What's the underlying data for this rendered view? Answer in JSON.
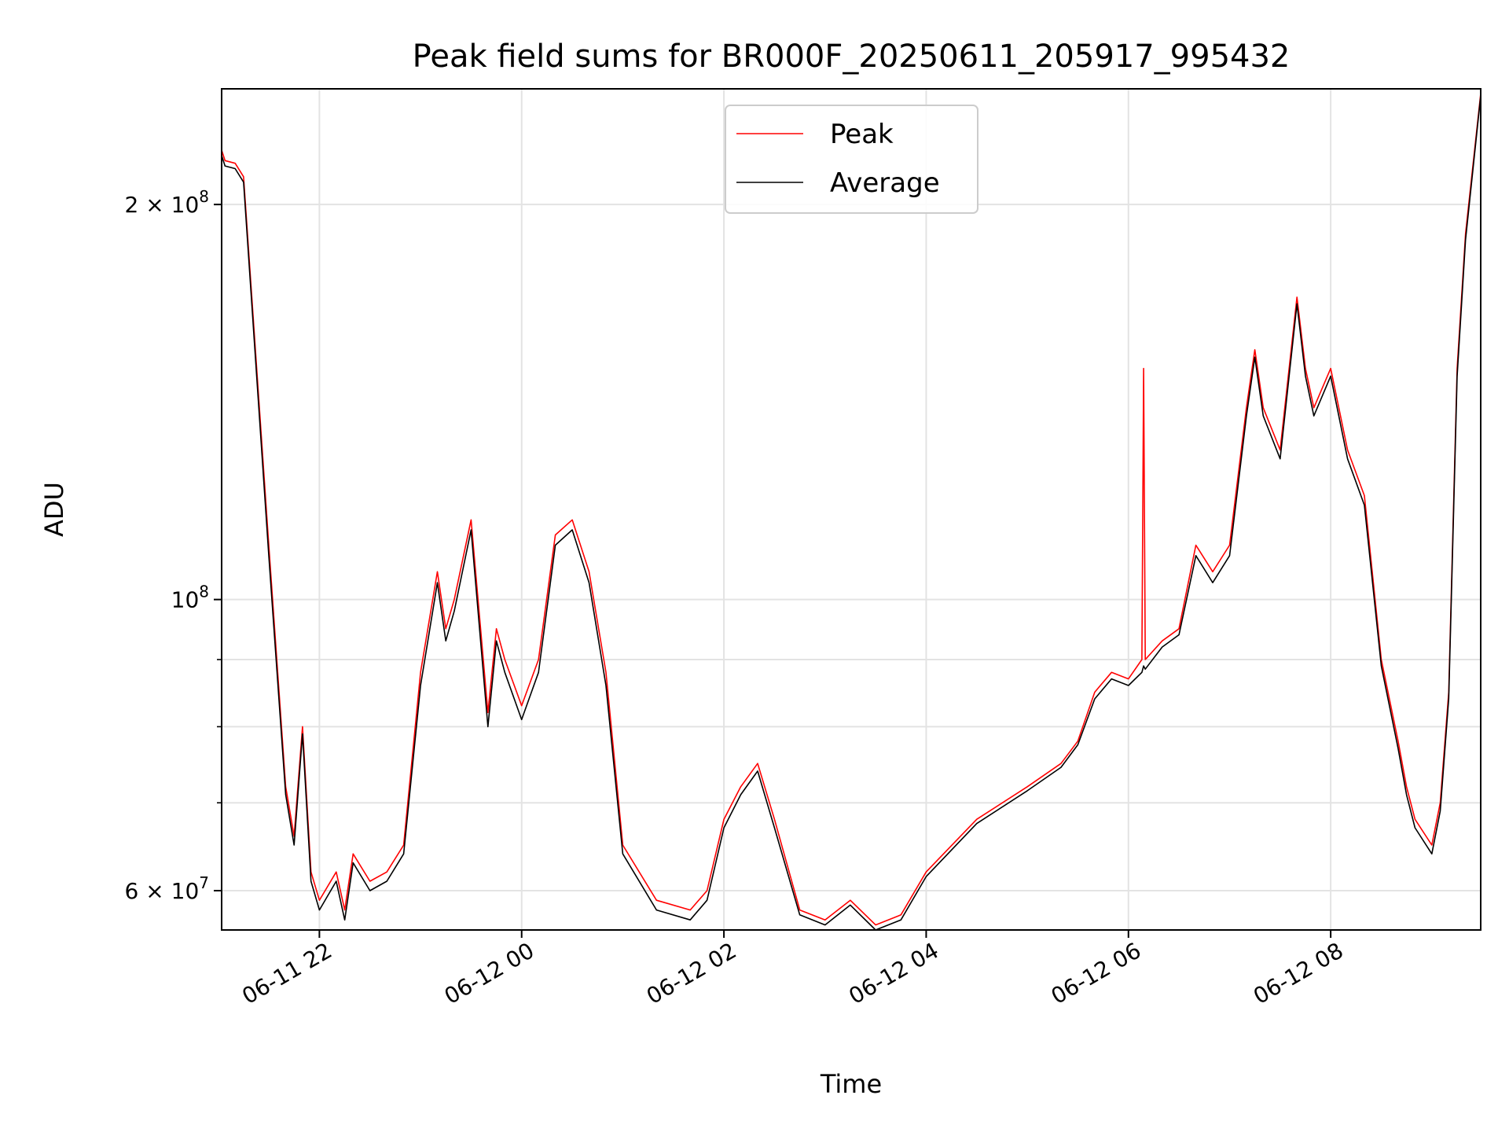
{
  "chart_data": {
    "type": "line",
    "title": "Peak field sums for BR000F_20250611_205917_995432",
    "xlabel": "Time",
    "ylabel": "ADU",
    "yscale": "log",
    "xlim": [
      "2025-06-11 21:02",
      "2025-06-12 09:29"
    ],
    "ylim": [
      56000000,
      245000000
    ],
    "grid": true,
    "legend": "upper center",
    "x_ticks": [
      {
        "value": "2025-06-11 22:00",
        "label": "06-11 22"
      },
      {
        "value": "2025-06-12 00:00",
        "label": "06-12 00"
      },
      {
        "value": "2025-06-12 02:00",
        "label": "06-12 02"
      },
      {
        "value": "2025-06-12 04:00",
        "label": "06-12 04"
      },
      {
        "value": "2025-06-12 06:00",
        "label": "06-12 06"
      },
      {
        "value": "2025-06-12 08:00",
        "label": "06-12 08"
      }
    ],
    "y_ticks": [
      {
        "value": 60000000,
        "label": "6 × 10^7",
        "mantissa": "6 × 10",
        "exp": "7"
      },
      {
        "value": 100000000,
        "label": "10^8",
        "mantissa": "10",
        "exp": "8"
      },
      {
        "value": 200000000,
        "label": "2 × 10^8",
        "mantissa": "2 × 10",
        "exp": "8"
      }
    ],
    "y_minor_ticks": [
      70000000,
      80000000,
      90000000
    ],
    "series": [
      {
        "name": "Peak",
        "color": "#ff0000",
        "x": [
          "2025-06-11 21:02",
          "2025-06-11 21:04",
          "2025-06-11 21:10",
          "2025-06-11 21:15",
          "2025-06-11 21:30",
          "2025-06-11 21:40",
          "2025-06-11 21:45",
          "2025-06-11 21:50",
          "2025-06-11 21:55",
          "2025-06-11 22:00",
          "2025-06-11 22:10",
          "2025-06-11 22:15",
          "2025-06-11 22:20",
          "2025-06-11 22:30",
          "2025-06-11 22:40",
          "2025-06-11 22:50",
          "2025-06-11 23:00",
          "2025-06-11 23:10",
          "2025-06-11 23:15",
          "2025-06-11 23:20",
          "2025-06-11 23:30",
          "2025-06-11 23:40",
          "2025-06-11 23:45",
          "2025-06-11 23:50",
          "2025-06-12 00:00",
          "2025-06-12 00:10",
          "2025-06-12 00:20",
          "2025-06-12 00:30",
          "2025-06-12 00:40",
          "2025-06-12 00:50",
          "2025-06-12 01:00",
          "2025-06-12 01:20",
          "2025-06-12 01:40",
          "2025-06-12 01:50",
          "2025-06-12 02:00",
          "2025-06-12 02:10",
          "2025-06-12 02:20",
          "2025-06-12 02:30",
          "2025-06-12 02:45",
          "2025-06-12 03:00",
          "2025-06-12 03:15",
          "2025-06-12 03:30",
          "2025-06-12 03:45",
          "2025-06-12 04:00",
          "2025-06-12 04:30",
          "2025-06-12 05:00",
          "2025-06-12 05:20",
          "2025-06-12 05:30",
          "2025-06-12 05:40",
          "2025-06-12 05:50",
          "2025-06-12 06:00",
          "2025-06-12 06:08",
          "2025-06-12 06:09",
          "2025-06-12 06:10",
          "2025-06-12 06:20",
          "2025-06-12 06:30",
          "2025-06-12 06:40",
          "2025-06-12 06:50",
          "2025-06-12 07:00",
          "2025-06-12 07:10",
          "2025-06-12 07:15",
          "2025-06-12 07:20",
          "2025-06-12 07:30",
          "2025-06-12 07:40",
          "2025-06-12 07:45",
          "2025-06-12 07:50",
          "2025-06-12 08:00",
          "2025-06-12 08:10",
          "2025-06-12 08:20",
          "2025-06-12 08:30",
          "2025-06-12 08:40",
          "2025-06-12 08:45",
          "2025-06-12 08:50",
          "2025-06-12 09:00",
          "2025-06-12 09:05",
          "2025-06-12 09:10",
          "2025-06-12 09:15",
          "2025-06-12 09:20",
          "2025-06-12 09:29"
        ],
        "y": [
          220000000,
          216000000,
          215000000,
          210000000,
          110000000,
          72000000,
          66000000,
          80000000,
          62000000,
          59000000,
          62000000,
          58000000,
          64000000,
          61000000,
          62000000,
          65000000,
          88000000,
          105000000,
          95000000,
          100000000,
          115000000,
          82000000,
          95000000,
          90000000,
          83000000,
          90000000,
          112000000,
          115000000,
          105000000,
          88000000,
          65000000,
          59000000,
          58000000,
          60000000,
          68000000,
          72000000,
          75000000,
          68000000,
          58000000,
          57000000,
          59000000,
          56500000,
          57500000,
          62000000,
          68000000,
          72000000,
          75000000,
          78000000,
          85000000,
          88000000,
          87000000,
          90000000,
          150000000,
          90000000,
          93000000,
          95000000,
          110000000,
          105000000,
          110000000,
          140000000,
          155000000,
          140000000,
          130000000,
          170000000,
          150000000,
          140000000,
          150000000,
          130000000,
          120000000,
          90000000,
          78000000,
          72000000,
          68000000,
          65000000,
          70000000,
          85000000,
          150000000,
          190000000,
          243000000
        ]
      },
      {
        "name": "Average",
        "color": "#000000",
        "x": [
          "2025-06-11 21:02",
          "2025-06-11 21:04",
          "2025-06-11 21:10",
          "2025-06-11 21:15",
          "2025-06-11 21:30",
          "2025-06-11 21:40",
          "2025-06-11 21:45",
          "2025-06-11 21:50",
          "2025-06-11 21:55",
          "2025-06-11 22:00",
          "2025-06-11 22:10",
          "2025-06-11 22:15",
          "2025-06-11 22:20",
          "2025-06-11 22:30",
          "2025-06-11 22:40",
          "2025-06-11 22:50",
          "2025-06-11 23:00",
          "2025-06-11 23:10",
          "2025-06-11 23:15",
          "2025-06-11 23:20",
          "2025-06-11 23:30",
          "2025-06-11 23:40",
          "2025-06-11 23:45",
          "2025-06-11 23:50",
          "2025-06-12 00:00",
          "2025-06-12 00:10",
          "2025-06-12 00:20",
          "2025-06-12 00:30",
          "2025-06-12 00:40",
          "2025-06-12 00:50",
          "2025-06-12 01:00",
          "2025-06-12 01:20",
          "2025-06-12 01:40",
          "2025-06-12 01:50",
          "2025-06-12 02:00",
          "2025-06-12 02:10",
          "2025-06-12 02:20",
          "2025-06-12 02:30",
          "2025-06-12 02:45",
          "2025-06-12 03:00",
          "2025-06-12 03:15",
          "2025-06-12 03:30",
          "2025-06-12 03:45",
          "2025-06-12 04:00",
          "2025-06-12 04:30",
          "2025-06-12 05:00",
          "2025-06-12 05:20",
          "2025-06-12 05:30",
          "2025-06-12 05:40",
          "2025-06-12 05:50",
          "2025-06-12 06:00",
          "2025-06-12 06:08",
          "2025-06-12 06:09",
          "2025-06-12 06:10",
          "2025-06-12 06:20",
          "2025-06-12 06:30",
          "2025-06-12 06:40",
          "2025-06-12 06:50",
          "2025-06-12 07:00",
          "2025-06-12 07:10",
          "2025-06-12 07:15",
          "2025-06-12 07:20",
          "2025-06-12 07:30",
          "2025-06-12 07:40",
          "2025-06-12 07:45",
          "2025-06-12 07:50",
          "2025-06-12 08:00",
          "2025-06-12 08:10",
          "2025-06-12 08:20",
          "2025-06-12 08:30",
          "2025-06-12 08:40",
          "2025-06-12 08:45",
          "2025-06-12 08:50",
          "2025-06-12 09:00",
          "2025-06-12 09:05",
          "2025-06-12 09:10",
          "2025-06-12 09:15",
          "2025-06-12 09:20",
          "2025-06-12 09:29"
        ],
        "y": [
          218000000,
          214000000,
          213000000,
          208000000,
          108000000,
          71000000,
          65000000,
          79000000,
          61000000,
          58000000,
          61000000,
          57000000,
          63000000,
          60000000,
          61000000,
          64000000,
          86000000,
          103000000,
          93000000,
          98000000,
          113000000,
          80000000,
          93000000,
          88000000,
          81000000,
          88000000,
          110000000,
          113000000,
          103000000,
          86000000,
          64000000,
          58000000,
          57000000,
          59000000,
          67000000,
          71000000,
          74000000,
          67000000,
          57500000,
          56500000,
          58500000,
          56000000,
          57000000,
          61500000,
          67500000,
          71500000,
          74500000,
          77500000,
          84000000,
          87000000,
          86000000,
          88000000,
          89000000,
          88500000,
          92000000,
          94000000,
          108000000,
          103000000,
          108000000,
          138000000,
          153000000,
          138000000,
          128000000,
          168000000,
          148000000,
          138000000,
          148000000,
          128000000,
          118000000,
          89000000,
          77000000,
          71000000,
          67000000,
          64000000,
          69000000,
          84000000,
          148000000,
          188000000,
          242000000
        ]
      }
    ]
  }
}
